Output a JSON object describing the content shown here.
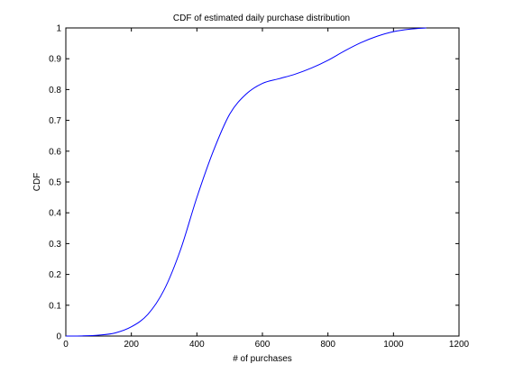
{
  "chart_data": {
    "type": "line",
    "title": "CDF of estimated daily purchase distribution",
    "xlabel": "# of purchases",
    "ylabel": "CDF",
    "xlim": [
      0,
      1200
    ],
    "ylim": [
      0,
      1
    ],
    "x_ticks": [
      0,
      200,
      400,
      600,
      800,
      1000,
      1200
    ],
    "y_ticks": [
      0,
      0.1,
      0.2,
      0.3,
      0.4,
      0.5,
      0.6,
      0.7,
      0.8,
      0.9,
      1
    ],
    "x_tick_labels": [
      "0",
      "200",
      "400",
      "600",
      "800",
      "1000",
      "1200"
    ],
    "y_tick_labels": [
      "0",
      "0.1",
      "0.2",
      "0.3",
      "0.4",
      "0.5",
      "0.6",
      "0.7",
      "0.8",
      "0.9",
      "1"
    ],
    "grid": false,
    "line_color": "#0000ff",
    "series": [
      {
        "x": [
          0,
          50,
          100,
          150,
          200,
          250,
          300,
          350,
          400,
          450,
          500,
          550,
          600,
          650,
          700,
          750,
          800,
          850,
          900,
          950,
          1000,
          1050,
          1100
        ],
        "y": [
          0,
          0.0005,
          0.003,
          0.01,
          0.03,
          0.07,
          0.15,
          0.28,
          0.45,
          0.6,
          0.72,
          0.785,
          0.82,
          0.835,
          0.85,
          0.87,
          0.895,
          0.925,
          0.952,
          0.973,
          0.988,
          0.996,
          1.0
        ]
      }
    ]
  }
}
